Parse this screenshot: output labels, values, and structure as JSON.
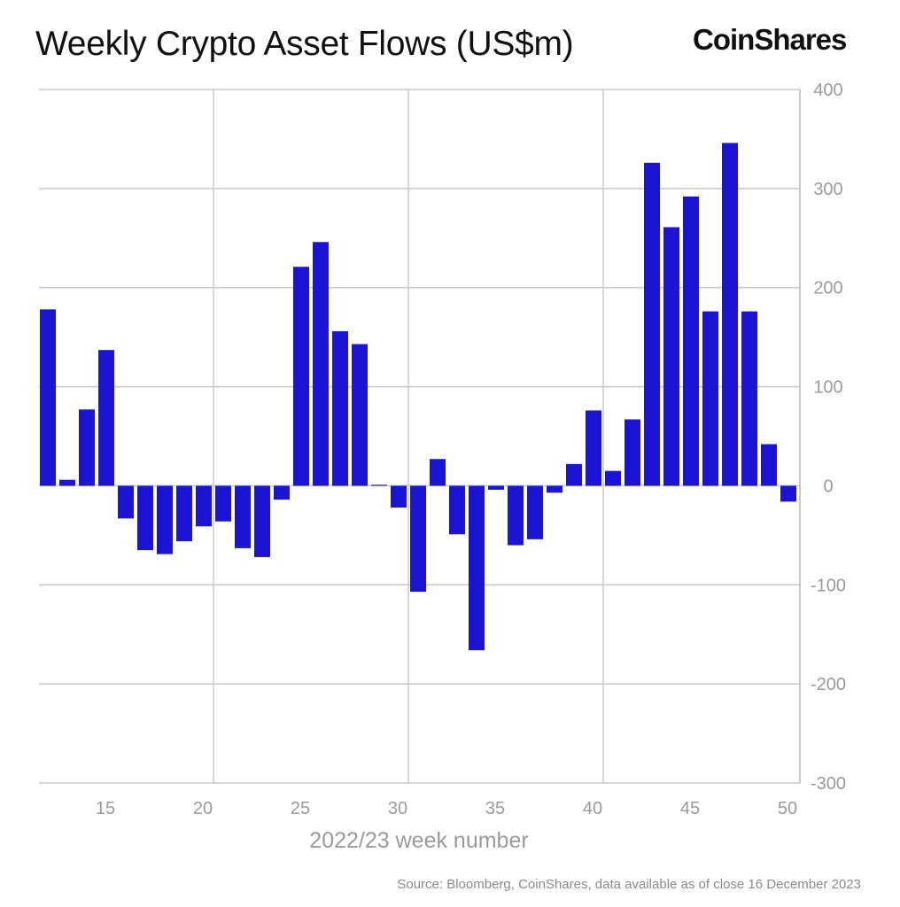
{
  "chart_data": {
    "type": "bar",
    "title": "Weekly Crypto Asset Flows (US$m)",
    "xlabel": "2022/23 week number",
    "ylabel": "",
    "ylim": [
      -300,
      400
    ],
    "xlim": [
      11.5,
      50.5
    ],
    "grid": true,
    "y_axis_position": "right",
    "bar_color": "#1b14d2",
    "yticks": [
      400,
      300,
      200,
      100,
      0,
      -100,
      -200,
      -300
    ],
    "xticks": [
      15,
      20,
      25,
      30,
      35,
      40,
      45,
      50
    ],
    "categories": [
      12,
      13,
      14,
      15,
      16,
      17,
      18,
      19,
      20,
      21,
      22,
      23,
      24,
      25,
      26,
      27,
      28,
      29,
      30,
      31,
      32,
      33,
      34,
      35,
      36,
      37,
      38,
      39,
      40,
      41,
      42,
      43,
      44,
      45,
      46,
      47,
      48,
      49,
      50
    ],
    "values": [
      178,
      6,
      77,
      137,
      -33,
      -65,
      -69,
      -56,
      -41,
      -36,
      -63,
      -72,
      -14,
      221,
      246,
      156,
      143,
      1,
      -22,
      -107,
      27,
      -49,
      -166,
      -4,
      -60,
      -54,
      -7,
      22,
      76,
      15,
      67,
      326,
      261,
      292,
      176,
      346,
      176,
      42,
      -16
    ]
  },
  "brand": "CoinShares",
  "source": "Source: Bloomberg, CoinShares, data available as of close 16 December 2023"
}
